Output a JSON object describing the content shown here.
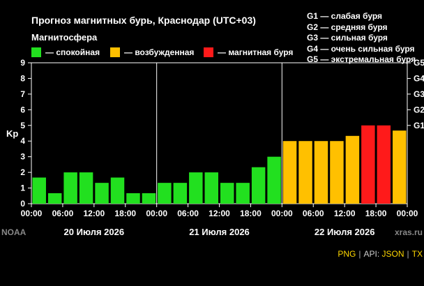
{
  "header": {
    "title": "Прогноз магнитных бурь, Краснодар (UTC+03)",
    "legend_title": "Магнитосфера",
    "legend": [
      {
        "label": "— спокойная",
        "color": "#22e01f"
      },
      {
        "label": "— возбужденная",
        "color": "#ffc000"
      },
      {
        "label": "— магнитная буря",
        "color": "#ff1a1a"
      }
    ],
    "storm_levels": [
      "G1 — слабая буря",
      "G2 — средняя буря",
      "G3 — сильная буря",
      "G4 — очень сильная буря",
      "G5 — экстремальная буря"
    ]
  },
  "chart_data": {
    "type": "bar",
    "ylabel": "Kp",
    "ylim": [
      0,
      9
    ],
    "yticks": [
      "0",
      "1",
      "2",
      "3",
      "4",
      "5",
      "6",
      "7",
      "8",
      "9"
    ],
    "right_ticks": [
      {
        "label": "G1",
        "value": 5
      },
      {
        "label": "G2",
        "value": 6
      },
      {
        "label": "G3",
        "value": 7
      },
      {
        "label": "G4",
        "value": 8
      },
      {
        "label": "G5",
        "value": 9
      }
    ],
    "xtick_labels": [
      "00:00",
      "06:00",
      "12:00",
      "18:00",
      "00:00",
      "06:00",
      "12:00",
      "18:00",
      "00:00",
      "06:00",
      "12:00",
      "18:00",
      "00:00"
    ],
    "days": [
      "20 Июля 2026",
      "21 Июля 2026",
      "22 Июля 2026"
    ],
    "values": [
      1.67,
      0.67,
      2,
      2,
      1.33,
      1.67,
      0.67,
      0.67,
      1.33,
      1.33,
      2,
      2,
      1.33,
      1.33,
      2.33,
      3,
      4,
      4,
      4,
      4,
      4.33,
      5,
      5,
      4.67
    ],
    "grid": false,
    "colors": {
      "quiet": "#22e01f",
      "active": "#ffc000",
      "storm": "#ff1a1a"
    },
    "source_left": "NOAA",
    "source_right": "xras.ru"
  },
  "footer": {
    "png": "PNG",
    "api_label": "API:",
    "json": "JSON",
    "txt": "TX"
  }
}
